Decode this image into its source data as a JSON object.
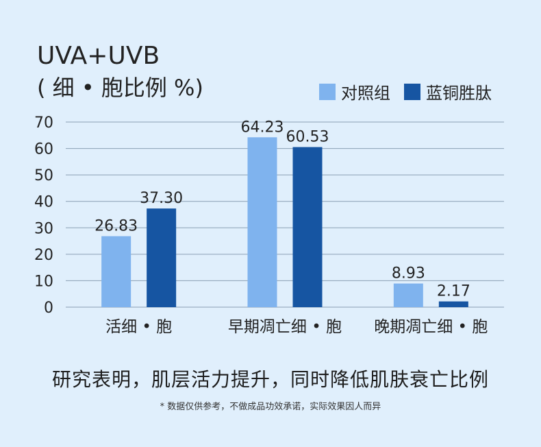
{
  "chart_data": {
    "type": "bar",
    "title": "UVA+UVB",
    "subtitle": "( 细 • 胞比例 %)",
    "categories": [
      "活细 • 胞",
      "早期凋亡细 • 胞",
      "晚期凋亡细 • 胞"
    ],
    "series": [
      {
        "name": "对照组",
        "color": "#7fb3ee",
        "values": [
          26.83,
          64.23,
          8.93
        ]
      },
      {
        "name": "蓝铜胜肽",
        "color": "#1655a2",
        "values": [
          37.3,
          60.53,
          2.17
        ]
      }
    ],
    "value_labels": [
      [
        "26.83",
        "64.23",
        "8.93"
      ],
      [
        "37.30",
        "60.53",
        "2.17"
      ]
    ],
    "ylim": [
      0,
      70
    ],
    "yticks": [
      0,
      10,
      20,
      30,
      40,
      50,
      60,
      70
    ],
    "grid": true,
    "legend": "top-right"
  },
  "headline": "研究表明，肌层活力提升，同时降低肌肤衰亡比例",
  "footnote": "* 数据仅供参考，不做成品功效承诺，实际效果因人而异"
}
